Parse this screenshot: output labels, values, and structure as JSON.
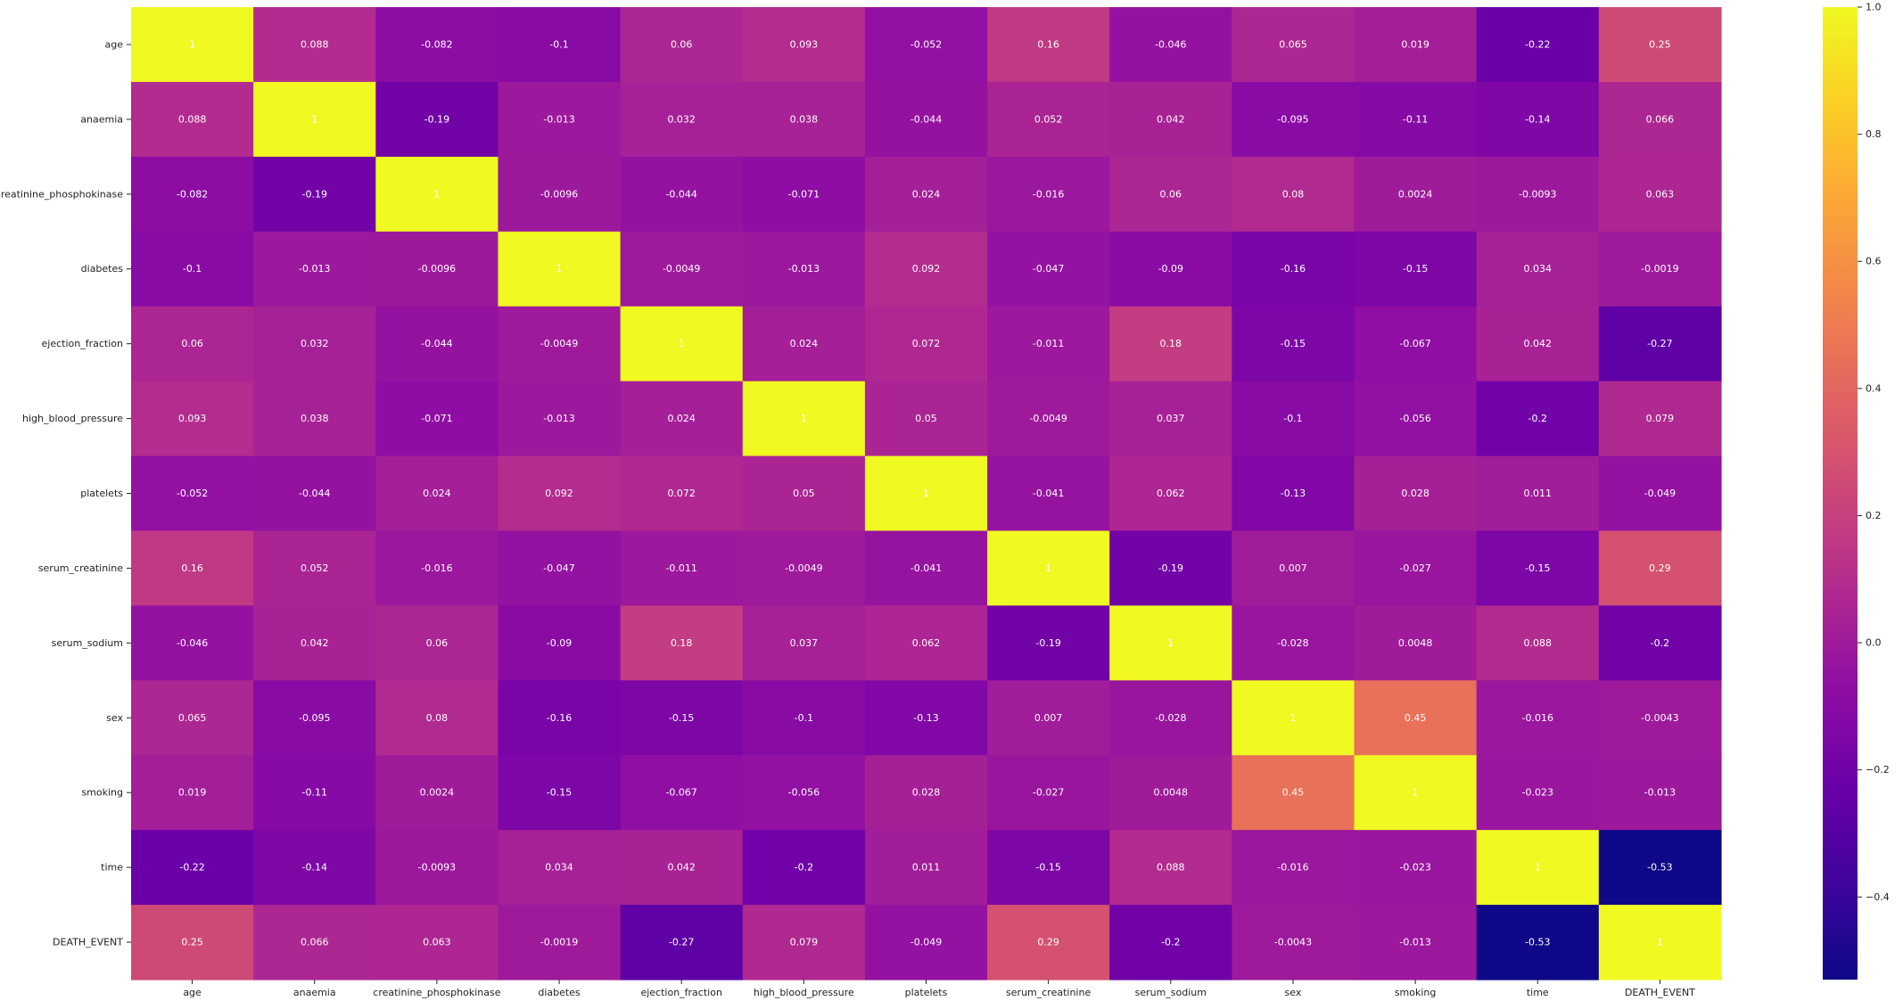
{
  "chart_data": {
    "type": "heatmap",
    "colormap": "plasma",
    "categories": [
      "age",
      "anaemia",
      "creatinine_phosphokinase",
      "diabetes",
      "ejection_fraction",
      "high_blood_pressure",
      "platelets",
      "serum_creatinine",
      "serum_sodium",
      "sex",
      "smoking",
      "time",
      "DEATH_EVENT"
    ],
    "values": [
      [
        "1",
        "0.088",
        "-0.082",
        "-0.1",
        "0.06",
        "0.093",
        "-0.052",
        "0.16",
        "-0.046",
        "0.065",
        "0.019",
        "-0.22",
        "0.25"
      ],
      [
        "0.088",
        "1",
        "-0.19",
        "-0.013",
        "0.032",
        "0.038",
        "-0.044",
        "0.052",
        "0.042",
        "-0.095",
        "-0.11",
        "-0.14",
        "0.066"
      ],
      [
        "-0.082",
        "-0.19",
        "1",
        "-0.0096",
        "-0.044",
        "-0.071",
        "0.024",
        "-0.016",
        "0.06",
        "0.08",
        "0.0024",
        "-0.0093",
        "0.063"
      ],
      [
        "-0.1",
        "-0.013",
        "-0.0096",
        "1",
        "-0.0049",
        "-0.013",
        "0.092",
        "-0.047",
        "-0.09",
        "-0.16",
        "-0.15",
        "0.034",
        "-0.0019"
      ],
      [
        "0.06",
        "0.032",
        "-0.044",
        "-0.0049",
        "1",
        "0.024",
        "0.072",
        "-0.011",
        "0.18",
        "-0.15",
        "-0.067",
        "0.042",
        "-0.27"
      ],
      [
        "0.093",
        "0.038",
        "-0.071",
        "-0.013",
        "0.024",
        "1",
        "0.05",
        "-0.0049",
        "0.037",
        "-0.1",
        "-0.056",
        "-0.2",
        "0.079"
      ],
      [
        "-0.052",
        "-0.044",
        "0.024",
        "0.092",
        "0.072",
        "0.05",
        "1",
        "-0.041",
        "0.062",
        "-0.13",
        "0.028",
        "0.011",
        "-0.049"
      ],
      [
        "0.16",
        "0.052",
        "-0.016",
        "-0.047",
        "-0.011",
        "-0.0049",
        "-0.041",
        "1",
        "-0.19",
        "0.007",
        "-0.027",
        "-0.15",
        "0.29"
      ],
      [
        "-0.046",
        "0.042",
        "0.06",
        "-0.09",
        "0.18",
        "0.037",
        "0.062",
        "-0.19",
        "1",
        "-0.028",
        "0.0048",
        "0.088",
        "-0.2"
      ],
      [
        "0.065",
        "-0.095",
        "0.08",
        "-0.16",
        "-0.15",
        "-0.1",
        "-0.13",
        "0.007",
        "-0.028",
        "1",
        "0.45",
        "-0.016",
        "-0.0043"
      ],
      [
        "0.019",
        "-0.11",
        "0.0024",
        "-0.15",
        "-0.067",
        "-0.056",
        "0.028",
        "-0.027",
        "0.0048",
        "0.45",
        "1",
        "-0.023",
        "-0.013"
      ],
      [
        "-0.22",
        "-0.14",
        "-0.0093",
        "0.034",
        "0.042",
        "-0.2",
        "0.011",
        "-0.15",
        "0.088",
        "-0.016",
        "-0.023",
        "1",
        "-0.53"
      ],
      [
        "0.25",
        "0.066",
        "0.063",
        "-0.0019",
        "-0.27",
        "0.079",
        "-0.049",
        "0.29",
        "-0.2",
        "-0.0043",
        "-0.013",
        "-0.53",
        "1"
      ]
    ],
    "vmin": -0.53,
    "vmax": 1.0,
    "colorbar": {
      "ticks": [
        "1.0",
        "0.8",
        "0.6",
        "0.4",
        "0.2",
        "0.0",
        "−0.2",
        "−0.4"
      ],
      "tick_values": [
        1.0,
        0.8,
        0.6,
        0.4,
        0.2,
        0.0,
        -0.2,
        -0.4
      ]
    },
    "annotated": true,
    "grid": false
  }
}
